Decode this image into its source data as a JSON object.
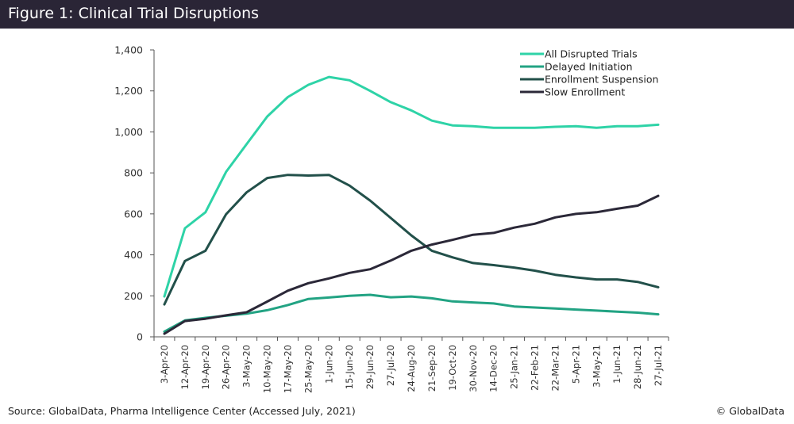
{
  "header": {
    "title": "Figure 1: Clinical Trial Disruptions"
  },
  "footer": {
    "source": "Source: GlobalData, Pharma Intelligence Center (Accessed July, 2021)",
    "copyright": "© GlobalData"
  },
  "colors": {
    "header_bg": "#2a2536",
    "all_disrupted": "#2ed3a7",
    "delayed_initiation": "#22a383",
    "enrollment_suspension": "#22504a",
    "slow_enrollment": "#2b2838"
  },
  "chart_data": {
    "type": "line",
    "title": "Figure 1: Clinical Trial Disruptions",
    "xlabel": "",
    "ylabel": "",
    "ylim": [
      0,
      1400
    ],
    "yticks": [
      0,
      200,
      400,
      600,
      800,
      1000,
      1200,
      1400
    ],
    "ytick_labels": [
      "0",
      "200",
      "400",
      "600",
      "800",
      "1,000",
      "1,200",
      "1,400"
    ],
    "grid": false,
    "legend_position": "top-right",
    "categories": [
      "3-Apr-20",
      "12-Apr-20",
      "19-Apr-20",
      "26-Apr-20",
      "3-May-20",
      "10-May-20",
      "17-May-20",
      "25-May-20",
      "1-Jun-20",
      "15-Jun-20",
      "29-Jun-20",
      "27-Jul-20",
      "24-Aug-20",
      "21-Sep-20",
      "19-Oct-20",
      "30-Nov-20",
      "14-Dec-20",
      "25-Jan-21",
      "22-Feb-21",
      "22-Mar-21",
      "5-Apr-21",
      "3-May-21",
      "1-Jun-21",
      "28-Jun-21",
      "27-Jul-21"
    ],
    "series": [
      {
        "name": "All Disrupted Trials",
        "color": "#2ed3a7",
        "values": [
          197,
          530,
          608,
          805,
          940,
          1075,
          1170,
          1230,
          1268,
          1252,
          1200,
          1145,
          1105,
          1055,
          1032,
          1028,
          1020,
          1020,
          1020,
          1025,
          1028,
          1020,
          1028,
          1028,
          1035
        ]
      },
      {
        "name": "Delayed Initiation",
        "color": "#22a383",
        "values": [
          25,
          80,
          93,
          103,
          113,
          130,
          155,
          185,
          192,
          200,
          205,
          193,
          197,
          188,
          173,
          168,
          163,
          148,
          143,
          138,
          133,
          128,
          123,
          118,
          110
        ]
      },
      {
        "name": "Enrollment Suspension",
        "color": "#22504a",
        "values": [
          158,
          370,
          420,
          598,
          705,
          775,
          790,
          787,
          790,
          738,
          665,
          580,
          495,
          420,
          388,
          360,
          350,
          338,
          323,
          303,
          290,
          280,
          280,
          268,
          242
        ]
      },
      {
        "name": "Slow Enrollment",
        "color": "#2b2838",
        "values": [
          15,
          77,
          88,
          105,
          120,
          172,
          225,
          262,
          285,
          312,
          330,
          372,
          420,
          450,
          473,
          498,
          507,
          533,
          552,
          583,
          600,
          608,
          625,
          640,
          688
        ]
      }
    ]
  }
}
